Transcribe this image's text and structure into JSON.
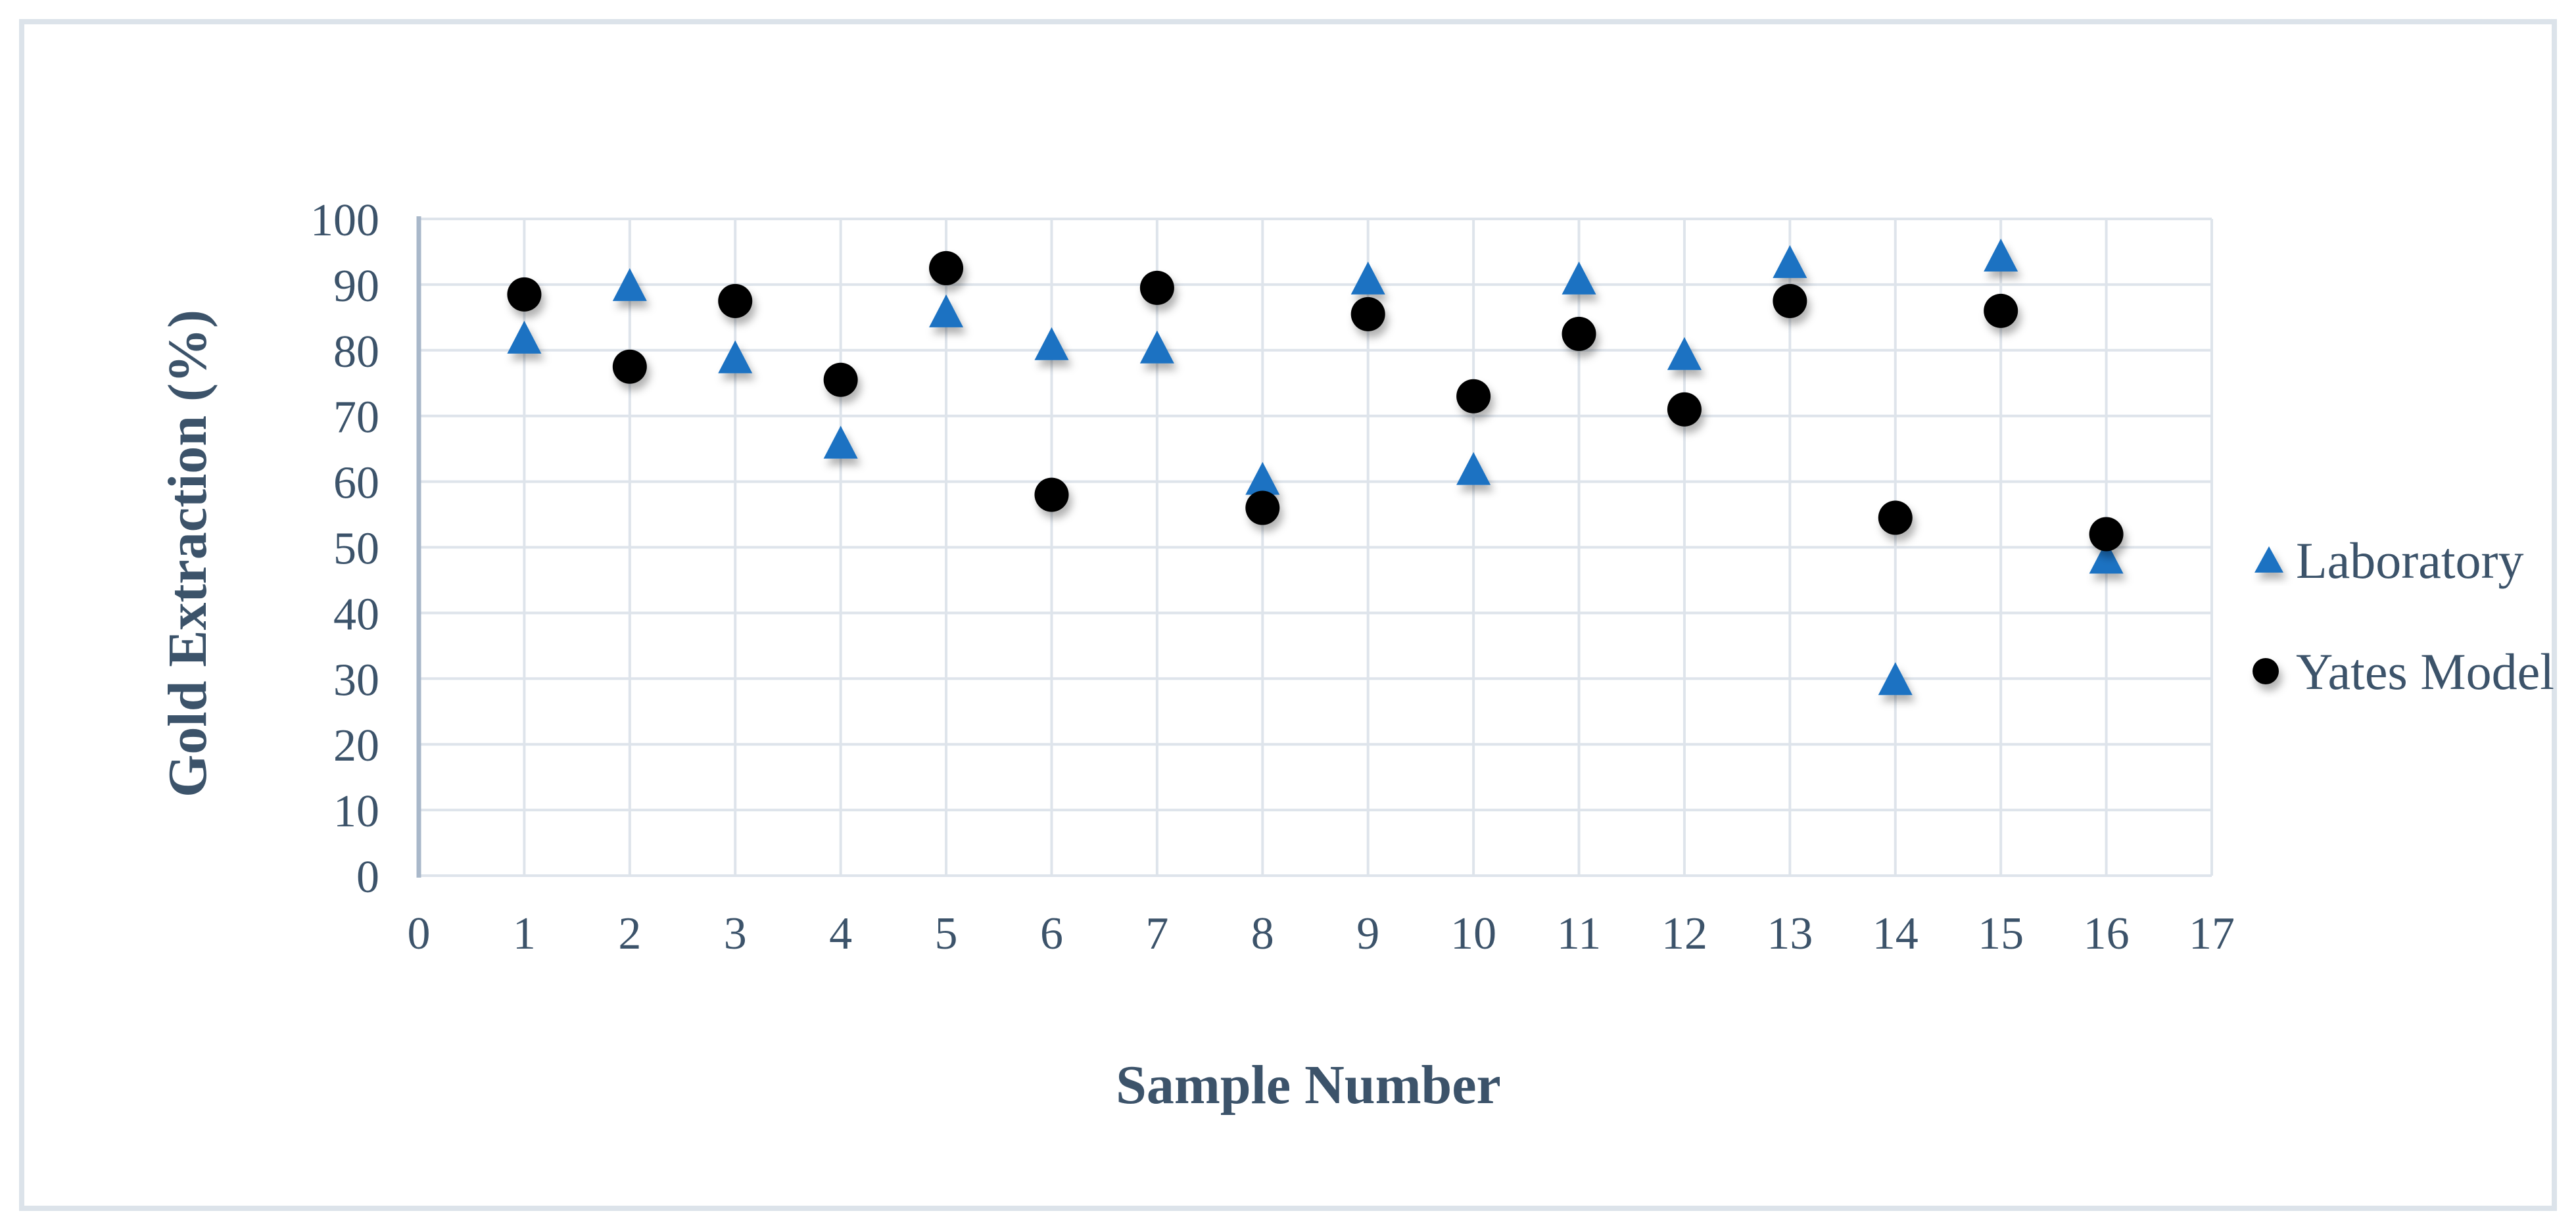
{
  "figure": {
    "background_color": "#FFFFFF",
    "frame_border_color": "#DCE3EA",
    "gridline_color": "#DEE4EB",
    "axis_line_color": "#A9B8CA",
    "text_color": "#3C536A"
  },
  "chart_data": {
    "type": "scatter",
    "title": "",
    "xlabel": "Sample Number",
    "ylabel": "Gold Extraction (%)",
    "xlim": [
      0,
      17
    ],
    "ylim": [
      0,
      100
    ],
    "x_ticks": [
      0,
      1,
      2,
      3,
      4,
      5,
      6,
      7,
      8,
      9,
      10,
      11,
      12,
      13,
      14,
      15,
      16,
      17
    ],
    "y_ticks": [
      0,
      10,
      20,
      30,
      40,
      50,
      60,
      70,
      80,
      90,
      100
    ],
    "grid": true,
    "legend_position": "right",
    "x": [
      1,
      2,
      3,
      4,
      5,
      6,
      7,
      8,
      9,
      10,
      11,
      12,
      13,
      14,
      15,
      16
    ],
    "series": [
      {
        "name": "Laboratory",
        "marker": "triangle",
        "color": "#1B72C2",
        "values": [
          82,
          90,
          79,
          66,
          86,
          81,
          80.5,
          60.5,
          91,
          62,
          91,
          79.5,
          93.5,
          30,
          94.5,
          48.5
        ]
      },
      {
        "name": "Yates Model",
        "marker": "circle",
        "color": "#000000",
        "values": [
          88.5,
          77.5,
          87.5,
          75.5,
          92.5,
          58,
          89.5,
          56,
          85.5,
          73,
          82.5,
          71,
          87.5,
          54.5,
          86,
          52
        ]
      }
    ]
  }
}
